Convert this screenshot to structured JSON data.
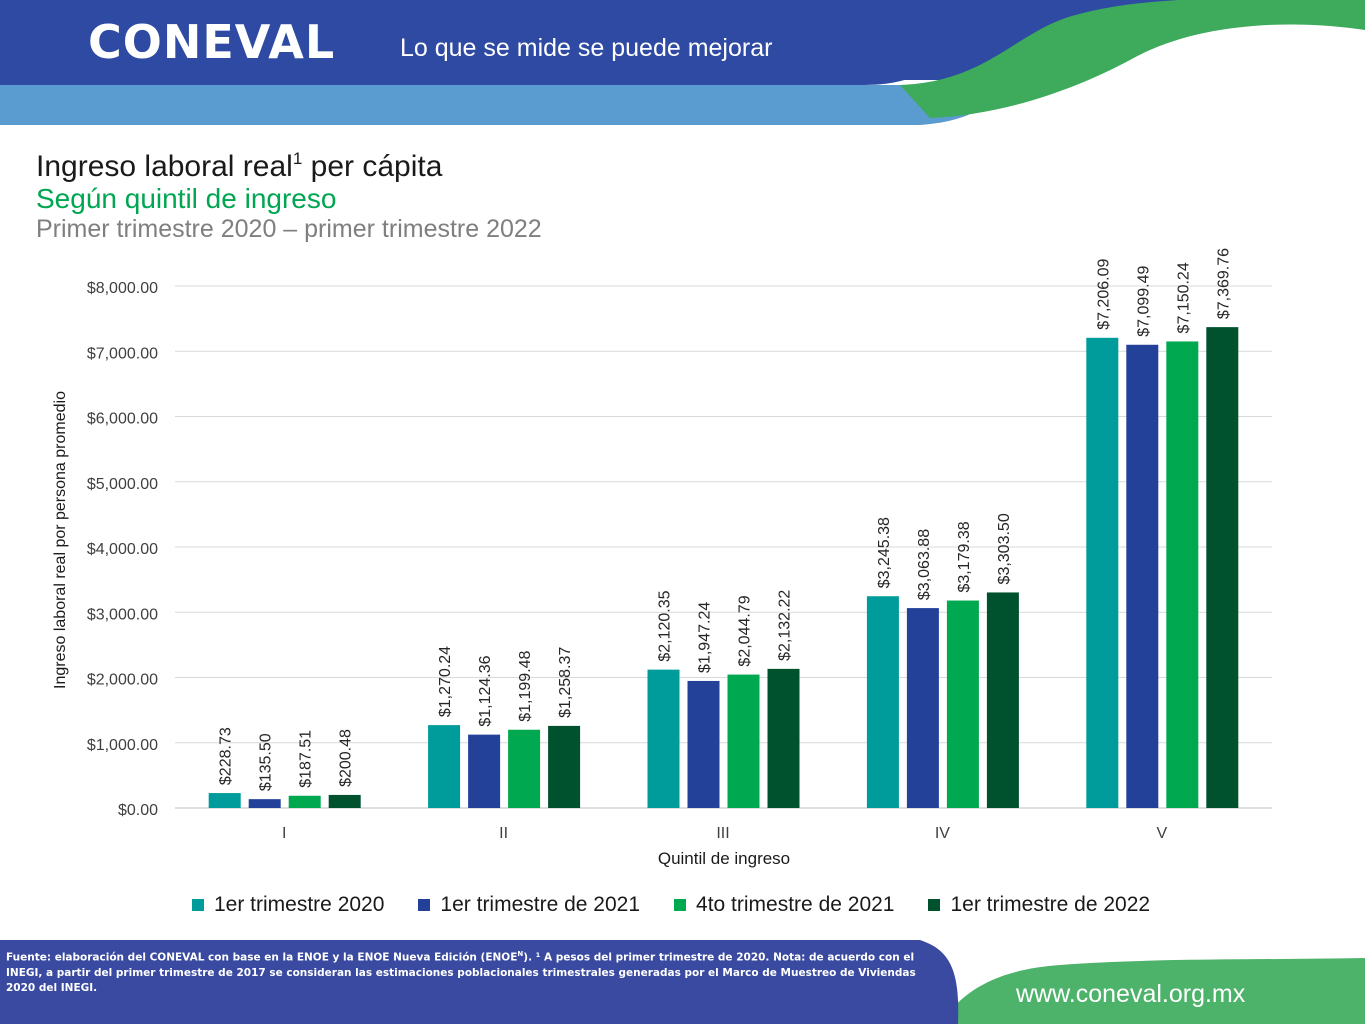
{
  "header": {
    "logo_text": "CONEVAL",
    "tagline": "Lo que se mide se puede mejorar"
  },
  "titles": {
    "title": "Ingreso laboral real",
    "title_sup": "1",
    "title_suffix": " per cápita",
    "subtitle": "Según quintil de ingreso",
    "period": "Primer trimestre 2020 – primer trimestre 2022"
  },
  "chart_data": {
    "type": "bar",
    "xlabel": "Quintil de ingreso",
    "ylabel": "Ingreso laboral real  por persona promedio",
    "ylim": [
      0,
      8000
    ],
    "yticks": [
      0,
      1000,
      2000,
      3000,
      4000,
      5000,
      6000,
      7000,
      8000
    ],
    "ytick_labels": [
      "$0.00",
      "$1,000.00",
      "$2,000.00",
      "$3,000.00",
      "$4,000.00",
      "$5,000.00",
      "$6,000.00",
      "$7,000.00",
      "$8,000.00"
    ],
    "grid": true,
    "legend_position": "bottom",
    "categories": [
      "I",
      "II",
      "III",
      "IV",
      "V"
    ],
    "series": [
      {
        "name": "1er trimestre 2020",
        "color": "#009b9b",
        "values": [
          228.73,
          1270.24,
          2120.35,
          3245.38,
          7206.09
        ],
        "labels": [
          "$228.73",
          "$1,270.24",
          "$2,120.35",
          "$3,245.38",
          "$7,206.09"
        ]
      },
      {
        "name": "1er trimestre de 2021",
        "color": "#24419a",
        "values": [
          135.5,
          1124.36,
          1947.24,
          3063.88,
          7099.49
        ],
        "labels": [
          "$135.50",
          "$1,124.36",
          "$1,947.24",
          "$3,063.88",
          "$7,099.49"
        ]
      },
      {
        "name": "4to trimestre de 2021",
        "color": "#00a84f",
        "values": [
          187.51,
          1199.48,
          2044.79,
          3179.38,
          7150.24
        ],
        "labels": [
          "$187.51",
          "$1,199.48",
          "$2,044.79",
          "$3,179.38",
          "$7,150.24"
        ]
      },
      {
        "name": "1er trimestre de 2022",
        "color": "#00522e",
        "values": [
          200.48,
          1258.37,
          2132.22,
          3303.5,
          7369.76
        ],
        "labels": [
          "$200.48",
          "$1,258.37",
          "$2,132.22",
          "$3,303.50",
          "$7,369.76"
        ]
      }
    ]
  },
  "footer": {
    "footnote_part1": "Fuente: elaboración del CONEVAL con base en la ENOE y la ENOE Nueva Edición (ENOE",
    "footnote_sup": "N",
    "footnote_part2": "). ¹ A pesos del primer trimestre de 2020. Nota: de acuerdo con el INEGI, a partir del primer trimestre de 2017 se consideran las estimaciones poblacionales trimestrales generadas por el Marco de Muestreo de Viviendas 2020 del INEGI.",
    "website": "www.coneval.org.mx"
  },
  "colors": {
    "header_blue": "#2e4aa2",
    "header_light_blue": "#5a9bd0",
    "header_green": "#3daa5c",
    "footer_blue": "#3a4aa0",
    "footer_green": "#4db36a"
  }
}
